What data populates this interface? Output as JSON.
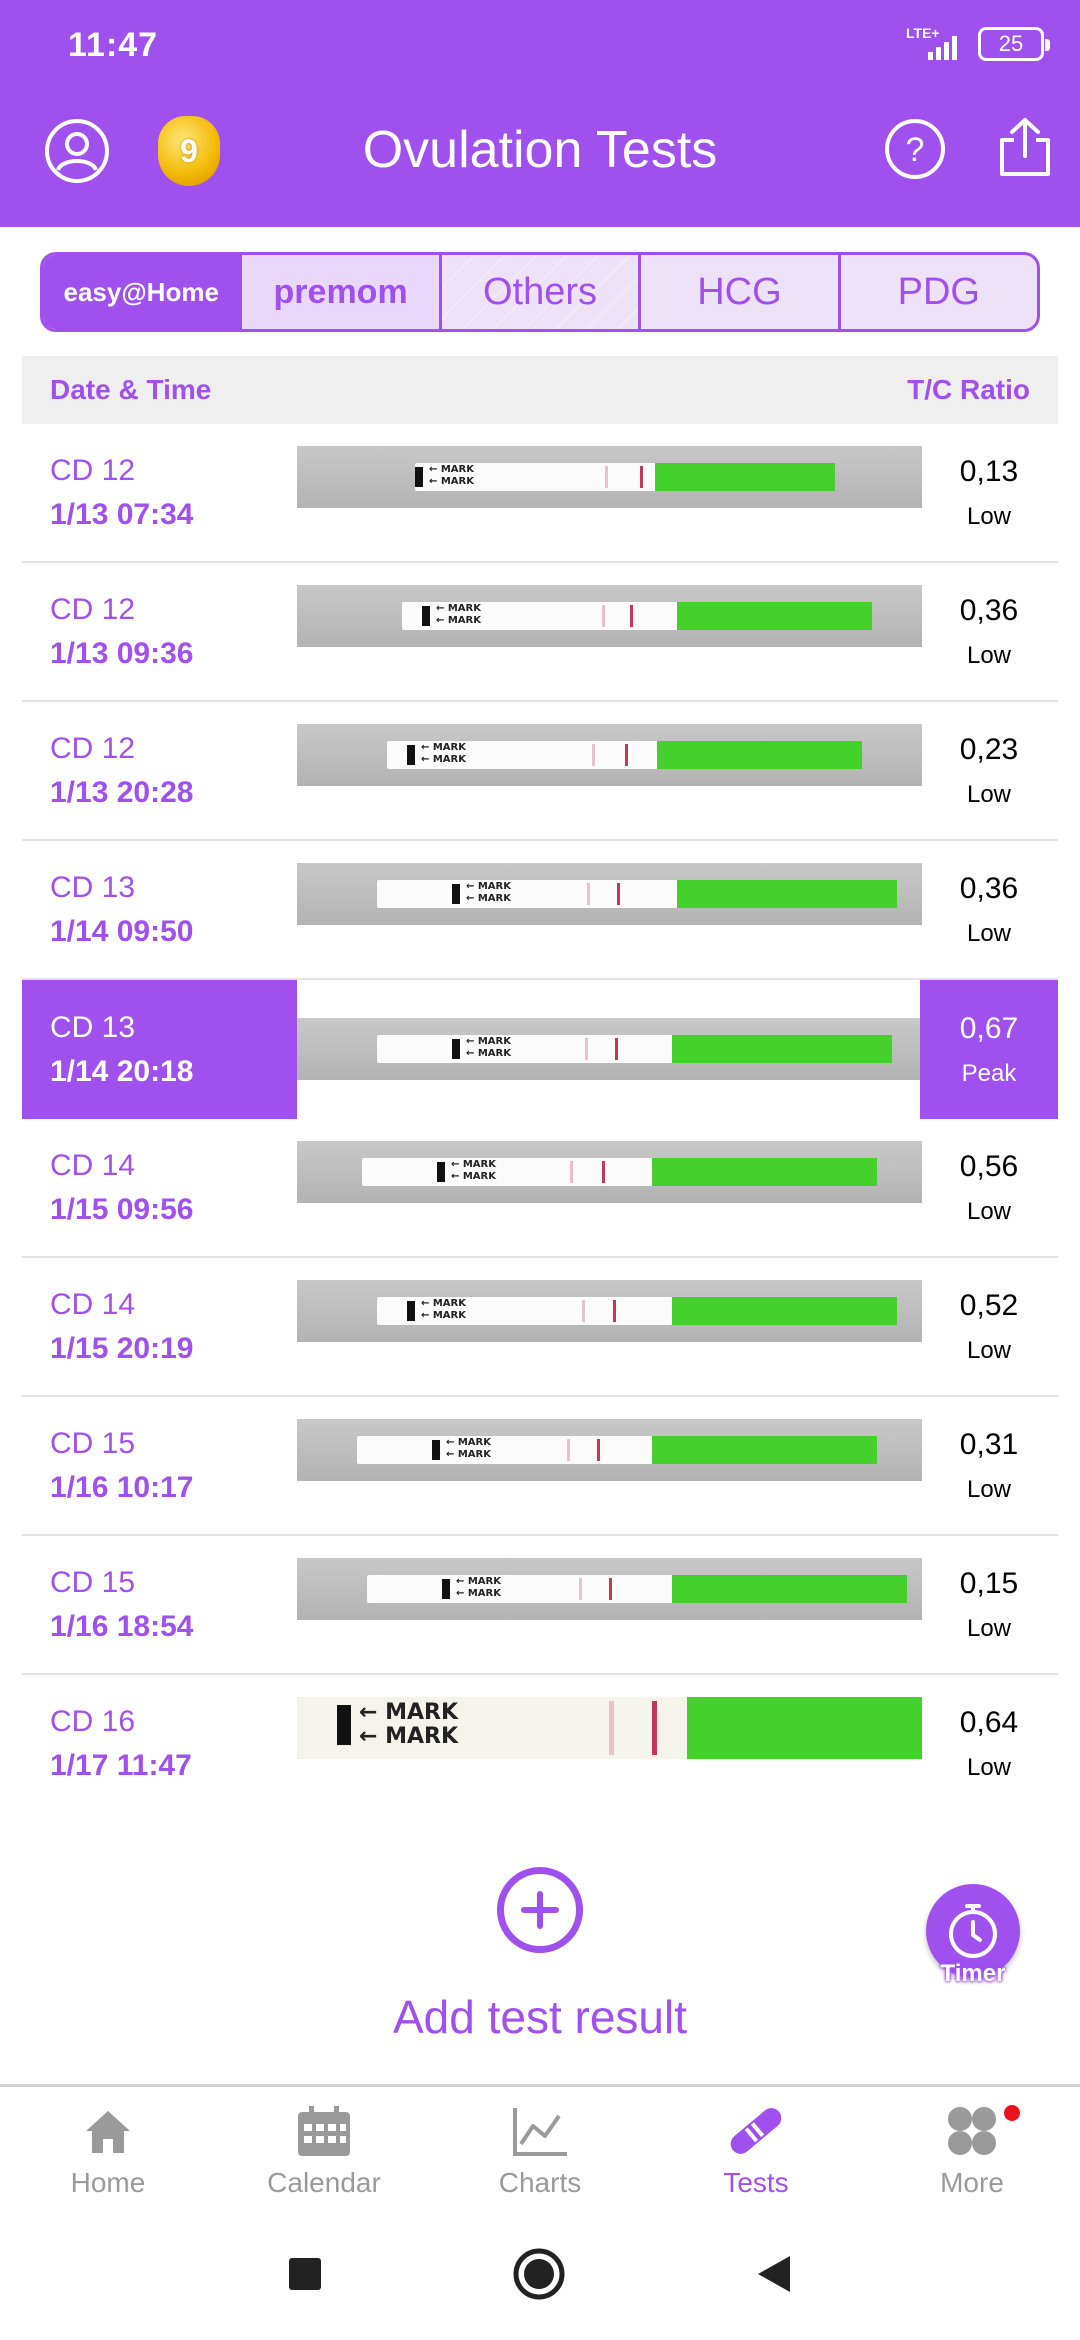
{
  "status": {
    "time": "11:47",
    "network": "LTE+",
    "battery": "25"
  },
  "header": {
    "title": "Ovulation Tests",
    "coins": "9"
  },
  "brand_tabs": [
    {
      "label": "easy@Home"
    },
    {
      "label": "premom"
    },
    {
      "label": "Others"
    },
    {
      "label": "HCG"
    },
    {
      "label": "PDG"
    }
  ],
  "table": {
    "col_date": "Date & Time",
    "col_ratio": "T/C Ratio",
    "rows": [
      {
        "cd": "CD 12",
        "date": "1/13  07:34",
        "ratio": "0,13",
        "level": "Low"
      },
      {
        "cd": "CD 12",
        "date": "1/13  09:36",
        "ratio": "0,36",
        "level": "Low"
      },
      {
        "cd": "CD 12",
        "date": "1/13  20:28",
        "ratio": "0,23",
        "level": "Low"
      },
      {
        "cd": "CD 13",
        "date": "1/14  09:50",
        "ratio": "0,36",
        "level": "Low"
      },
      {
        "cd": "CD 13",
        "date": "1/14  20:18",
        "ratio": "0,67",
        "level": "Peak"
      },
      {
        "cd": "CD 14",
        "date": "1/15  09:56",
        "ratio": "0,56",
        "level": "Low"
      },
      {
        "cd": "CD 14",
        "date": "1/15  20:19",
        "ratio": "0,52",
        "level": "Low"
      },
      {
        "cd": "CD 15",
        "date": "1/16  10:17",
        "ratio": "0,31",
        "level": "Low"
      },
      {
        "cd": "CD 15",
        "date": "1/16  18:54",
        "ratio": "0,15",
        "level": "Low"
      },
      {
        "cd": "CD 16",
        "date": "1/17  11:47",
        "ratio": "0,64",
        "level": "Low"
      }
    ]
  },
  "strip_text": "← MARK",
  "add": {
    "label": "Add test result"
  },
  "timer": {
    "label": "Timer"
  },
  "nav": [
    {
      "label": "Home",
      "icon": "home-icon"
    },
    {
      "label": "Calendar",
      "icon": "calendar-icon"
    },
    {
      "label": "Charts",
      "icon": "chart-icon"
    },
    {
      "label": "Tests",
      "icon": "test-strip-icon"
    },
    {
      "label": "More",
      "icon": "more-icon"
    }
  ],
  "colors": {
    "accent": "#a050ed",
    "strip_green": "#44d12b",
    "line_red": "#c3375a"
  }
}
